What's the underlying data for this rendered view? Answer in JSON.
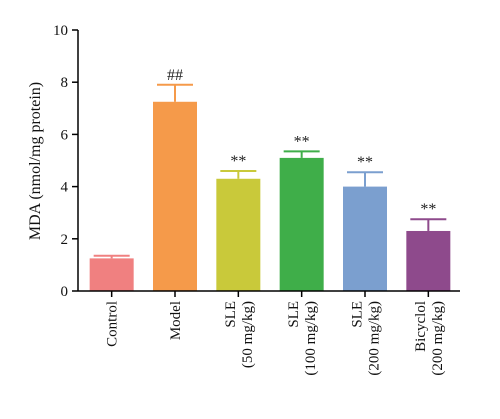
{
  "chart_data": {
    "type": "bar",
    "title": "",
    "xlabel": "",
    "ylabel": "MDA (nmol/mg protein)",
    "ylim": [
      0,
      10
    ],
    "yticks": [
      "0",
      "2",
      "4",
      "6",
      "8",
      "10"
    ],
    "grid": false,
    "categories": [
      [
        "Control"
      ],
      [
        "Model"
      ],
      [
        "SLE",
        "(50 mg/kg)"
      ],
      [
        "SLE",
        "(100 mg/kg)"
      ],
      [
        "SLE",
        "(200 mg/kg)"
      ],
      [
        "Bicyclol",
        "(200 mg/kg)"
      ]
    ],
    "values": [
      1.25,
      7.25,
      4.3,
      5.1,
      4.0,
      2.3
    ],
    "errors": [
      0.1,
      0.65,
      0.3,
      0.25,
      0.55,
      0.45
    ],
    "significance": [
      "",
      "##",
      "**",
      "**",
      "**",
      "**"
    ],
    "colors": [
      "#f08080",
      "#f59a4a",
      "#c9c93a",
      "#3fae49",
      "#7b9fcf",
      "#8e4a8c"
    ]
  }
}
